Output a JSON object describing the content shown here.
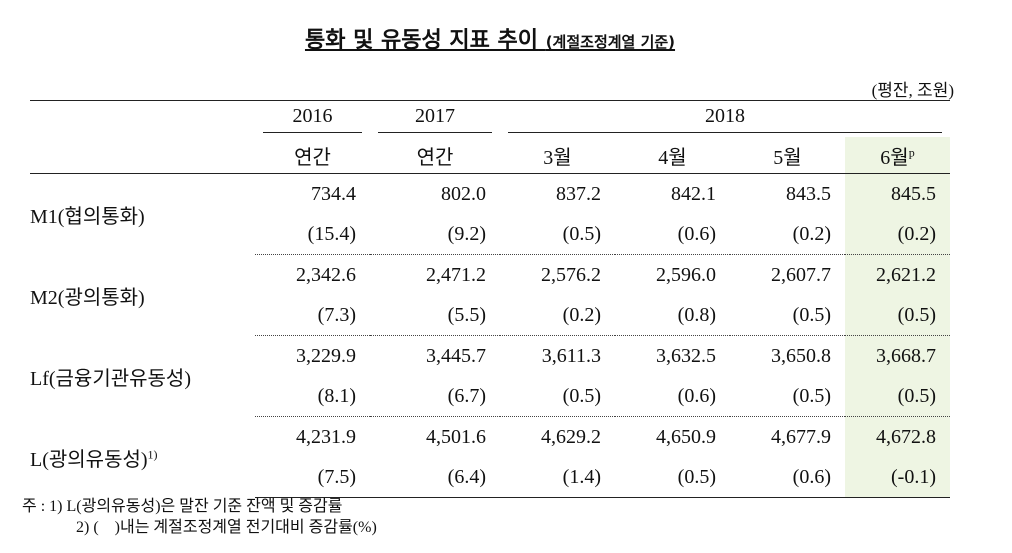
{
  "title": "통화 및 유동성 지표 추이",
  "subtitle": "(계절조정계열 기준)",
  "unit": "(평잔, 조원)",
  "header": {
    "years": [
      "2016",
      "2017",
      "2018"
    ],
    "periods": [
      "연간",
      "연간",
      "3월",
      "4월",
      "5월",
      "6월"
    ],
    "preliminary_mark": "p"
  },
  "table": {
    "rows": [
      {
        "label": "M1(협의통화)",
        "values": [
          "734.4",
          "802.0",
          "837.2",
          "842.1",
          "843.5",
          "845.5"
        ],
        "changes": [
          "(15.4)",
          "(9.2)",
          "(0.5)",
          "(0.6)",
          "(0.2)",
          "(0.2)"
        ]
      },
      {
        "label": "M2(광의통화)",
        "values": [
          "2,342.6",
          "2,471.2",
          "2,576.2",
          "2,596.0",
          "2,607.7",
          "2,621.2"
        ],
        "changes": [
          "(7.3)",
          "(5.5)",
          "(0.2)",
          "(0.8)",
          "(0.5)",
          "(0.5)"
        ]
      },
      {
        "label": "Lf(금융기관유동성)",
        "values": [
          "3,229.9",
          "3,445.7",
          "3,611.3",
          "3,632.5",
          "3,650.8",
          "3,668.7"
        ],
        "changes": [
          "(8.1)",
          "(6.7)",
          "(0.5)",
          "(0.6)",
          "(0.5)",
          "(0.5)"
        ]
      },
      {
        "label": "L(광의유동성)",
        "label_note": "1)",
        "values": [
          "4,231.9",
          "4,501.6",
          "4,629.2",
          "4,650.9",
          "4,677.9",
          "4,672.8"
        ],
        "changes": [
          "(7.5)",
          "(6.4)",
          "(1.4)",
          "(0.5)",
          "(0.6)",
          "(-0.1)"
        ]
      }
    ]
  },
  "notes": {
    "prefix": "주 :",
    "items": [
      "1) L(광의유동성)은 말잔 기준 잔액 및 증감률",
      "2) (    )내는 계절조정계열 전기대비 증감률(%)"
    ]
  }
}
